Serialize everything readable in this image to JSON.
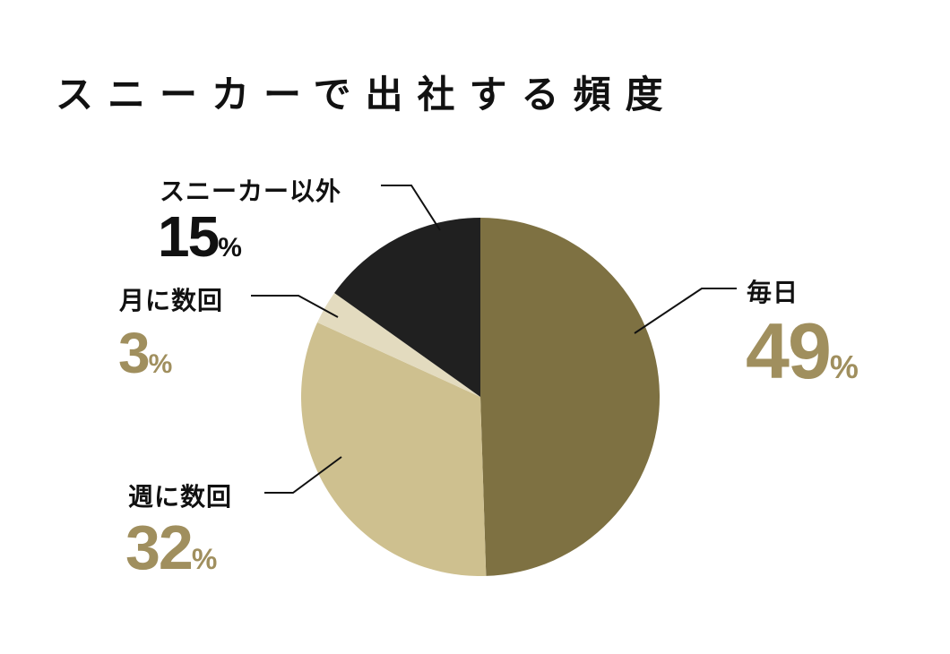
{
  "title": "スニーカーで出社する頻度",
  "colors": {
    "daily": "#7e7142",
    "weekly": "#cec08f",
    "monthly": "#e3dbbf",
    "other": "#202020",
    "accent_text": "#a08f5e",
    "black_text": "#111111"
  },
  "labels": {
    "daily": {
      "name": "毎日",
      "value": "49",
      "unit": "%"
    },
    "weekly": {
      "name": "週に数回",
      "value": "32",
      "unit": "%"
    },
    "monthly": {
      "name": "月に数回",
      "value": "3",
      "unit": "%"
    },
    "other": {
      "name": "スニーカー以外",
      "value": "15",
      "unit": "%"
    }
  },
  "chart_data": {
    "type": "pie",
    "title": "スニーカーで出社する頻度",
    "categories": [
      "毎日",
      "週に数回",
      "月に数回",
      "スニーカー以外"
    ],
    "values": [
      49,
      32,
      3,
      15
    ],
    "unit": "%",
    "colors": [
      "#7e7142",
      "#cec08f",
      "#e3dbbf",
      "#202020"
    ],
    "start_angle": "12 o'clock, clockwise",
    "legend": "none (direct labels with leader lines)"
  }
}
